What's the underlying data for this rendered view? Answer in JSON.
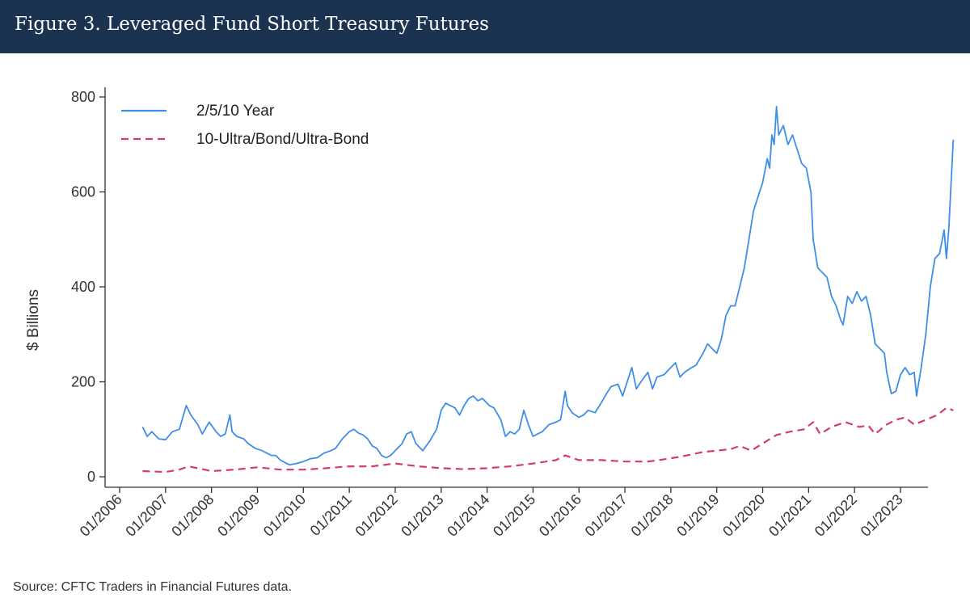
{
  "figure": {
    "title": "Figure 3. Leveraged Fund Short Treasury Futures",
    "source": "Source: CFTC Traders in Financial Futures data."
  },
  "colors": {
    "header_bg": "#1b3250",
    "series_1": "#3f8ee8",
    "series_2": "#d63a6a"
  },
  "chart_data": {
    "type": "line",
    "title": "",
    "xlabel": "",
    "ylabel": "$ Billions",
    "ylim": [
      0,
      800
    ],
    "yticks": [
      0,
      200,
      400,
      600,
      800
    ],
    "xlim": [
      2006.0,
      2023.6
    ],
    "xtick_labels": [
      "01/2006",
      "01/2007",
      "01/2008",
      "01/2009",
      "01/2010",
      "01/2011",
      "01/2012",
      "01/2013",
      "01/2014",
      "01/2015",
      "01/2016",
      "01/2017",
      "01/2018",
      "01/2019",
      "01/2020",
      "01/2021",
      "01/2022",
      "01/2023"
    ],
    "xtick_years": [
      2006,
      2007,
      2008,
      2009,
      2010,
      2011,
      2012,
      2013,
      2014,
      2015,
      2016,
      2017,
      2018,
      2019,
      2020,
      2021,
      2022,
      2023
    ],
    "grid": false,
    "legend_position": "top-left",
    "series": [
      {
        "name": "2/5/10 Year",
        "style": "solid",
        "points": [
          [
            2006.5,
            105
          ],
          [
            2006.6,
            85
          ],
          [
            2006.7,
            95
          ],
          [
            2006.85,
            80
          ],
          [
            2007.0,
            78
          ],
          [
            2007.15,
            95
          ],
          [
            2007.3,
            100
          ],
          [
            2007.45,
            150
          ],
          [
            2007.55,
            130
          ],
          [
            2007.7,
            110
          ],
          [
            2007.8,
            90
          ],
          [
            2007.95,
            115
          ],
          [
            2008.1,
            95
          ],
          [
            2008.2,
            85
          ],
          [
            2008.3,
            90
          ],
          [
            2008.4,
            130
          ],
          [
            2008.45,
            95
          ],
          [
            2008.55,
            85
          ],
          [
            2008.7,
            80
          ],
          [
            2008.8,
            70
          ],
          [
            2008.95,
            60
          ],
          [
            2009.1,
            55
          ],
          [
            2009.2,
            50
          ],
          [
            2009.3,
            45
          ],
          [
            2009.4,
            45
          ],
          [
            2009.5,
            35
          ],
          [
            2009.6,
            30
          ],
          [
            2009.7,
            25
          ],
          [
            2009.85,
            28
          ],
          [
            2010.0,
            32
          ],
          [
            2010.15,
            38
          ],
          [
            2010.3,
            40
          ],
          [
            2010.45,
            50
          ],
          [
            2010.6,
            55
          ],
          [
            2010.7,
            60
          ],
          [
            2010.85,
            80
          ],
          [
            2011.0,
            95
          ],
          [
            2011.1,
            100
          ],
          [
            2011.2,
            92
          ],
          [
            2011.3,
            88
          ],
          [
            2011.4,
            80
          ],
          [
            2011.5,
            65
          ],
          [
            2011.6,
            60
          ],
          [
            2011.7,
            45
          ],
          [
            2011.8,
            40
          ],
          [
            2011.9,
            45
          ],
          [
            2012.0,
            55
          ],
          [
            2012.15,
            70
          ],
          [
            2012.25,
            90
          ],
          [
            2012.35,
            95
          ],
          [
            2012.45,
            70
          ],
          [
            2012.6,
            55
          ],
          [
            2012.75,
            75
          ],
          [
            2012.9,
            100
          ],
          [
            2013.0,
            140
          ],
          [
            2013.1,
            155
          ],
          [
            2013.2,
            150
          ],
          [
            2013.3,
            145
          ],
          [
            2013.4,
            130
          ],
          [
            2013.5,
            150
          ],
          [
            2013.6,
            165
          ],
          [
            2013.7,
            170
          ],
          [
            2013.8,
            160
          ],
          [
            2013.9,
            165
          ],
          [
            2014.05,
            150
          ],
          [
            2014.15,
            145
          ],
          [
            2014.3,
            120
          ],
          [
            2014.4,
            85
          ],
          [
            2014.5,
            95
          ],
          [
            2014.6,
            90
          ],
          [
            2014.7,
            100
          ],
          [
            2014.8,
            140
          ],
          [
            2014.9,
            110
          ],
          [
            2015.0,
            85
          ],
          [
            2015.1,
            90
          ],
          [
            2015.2,
            95
          ],
          [
            2015.35,
            110
          ],
          [
            2015.5,
            115
          ],
          [
            2015.6,
            120
          ],
          [
            2015.7,
            180
          ],
          [
            2015.75,
            150
          ],
          [
            2015.85,
            135
          ],
          [
            2016.0,
            125
          ],
          [
            2016.1,
            130
          ],
          [
            2016.2,
            140
          ],
          [
            2016.35,
            135
          ],
          [
            2016.45,
            150
          ],
          [
            2016.6,
            175
          ],
          [
            2016.7,
            190
          ],
          [
            2016.85,
            195
          ],
          [
            2016.95,
            170
          ],
          [
            2017.05,
            200
          ],
          [
            2017.15,
            230
          ],
          [
            2017.25,
            185
          ],
          [
            2017.35,
            200
          ],
          [
            2017.5,
            220
          ],
          [
            2017.6,
            185
          ],
          [
            2017.7,
            210
          ],
          [
            2017.85,
            215
          ],
          [
            2017.95,
            225
          ],
          [
            2018.1,
            240
          ],
          [
            2018.2,
            210
          ],
          [
            2018.3,
            220
          ],
          [
            2018.45,
            230
          ],
          [
            2018.55,
            235
          ],
          [
            2018.7,
            260
          ],
          [
            2018.8,
            280
          ],
          [
            2018.9,
            270
          ],
          [
            2019.0,
            260
          ],
          [
            2019.1,
            290
          ],
          [
            2019.2,
            340
          ],
          [
            2019.3,
            360
          ],
          [
            2019.4,
            360
          ],
          [
            2019.5,
            400
          ],
          [
            2019.6,
            440
          ],
          [
            2019.7,
            500
          ],
          [
            2019.8,
            560
          ],
          [
            2019.9,
            590
          ],
          [
            2020.0,
            620
          ],
          [
            2020.1,
            670
          ],
          [
            2020.15,
            650
          ],
          [
            2020.2,
            720
          ],
          [
            2020.25,
            700
          ],
          [
            2020.3,
            780
          ],
          [
            2020.35,
            720
          ],
          [
            2020.45,
            740
          ],
          [
            2020.55,
            700
          ],
          [
            2020.65,
            720
          ],
          [
            2020.75,
            690
          ],
          [
            2020.85,
            660
          ],
          [
            2020.95,
            650
          ],
          [
            2021.05,
            600
          ],
          [
            2021.1,
            500
          ],
          [
            2021.2,
            440
          ],
          [
            2021.3,
            430
          ],
          [
            2021.4,
            420
          ],
          [
            2021.5,
            380
          ],
          [
            2021.6,
            360
          ],
          [
            2021.7,
            330
          ],
          [
            2021.75,
            320
          ],
          [
            2021.85,
            380
          ],
          [
            2021.95,
            365
          ],
          [
            2022.05,
            390
          ],
          [
            2022.15,
            370
          ],
          [
            2022.25,
            380
          ],
          [
            2022.35,
            340
          ],
          [
            2022.45,
            280
          ],
          [
            2022.55,
            270
          ],
          [
            2022.65,
            260
          ],
          [
            2022.7,
            220
          ],
          [
            2022.8,
            175
          ],
          [
            2022.9,
            180
          ],
          [
            2023.0,
            215
          ],
          [
            2023.1,
            230
          ],
          [
            2023.2,
            215
          ],
          [
            2023.3,
            220
          ],
          [
            2023.35,
            170
          ],
          [
            2023.45,
            230
          ],
          [
            2023.55,
            300
          ],
          [
            2023.65,
            400
          ],
          [
            2023.75,
            460
          ],
          [
            2023.85,
            470
          ],
          [
            2023.95,
            520
          ],
          [
            2024.0,
            460
          ],
          [
            2024.05,
            520
          ],
          [
            2024.15,
            710
          ]
        ]
      },
      {
        "name": "10-Ultra/Bond/Ultra-Bond",
        "style": "dashed",
        "points": [
          [
            2006.5,
            12
          ],
          [
            2007.0,
            10
          ],
          [
            2007.3,
            15
          ],
          [
            2007.5,
            22
          ],
          [
            2008.0,
            12
          ],
          [
            2008.5,
            15
          ],
          [
            2009.0,
            20
          ],
          [
            2009.5,
            15
          ],
          [
            2010.0,
            15
          ],
          [
            2010.5,
            18
          ],
          [
            2011.0,
            22
          ],
          [
            2011.5,
            22
          ],
          [
            2012.0,
            28
          ],
          [
            2012.5,
            22
          ],
          [
            2013.0,
            18
          ],
          [
            2013.5,
            16
          ],
          [
            2014.0,
            18
          ],
          [
            2014.5,
            22
          ],
          [
            2015.0,
            28
          ],
          [
            2015.5,
            35
          ],
          [
            2015.7,
            45
          ],
          [
            2016.0,
            35
          ],
          [
            2016.5,
            35
          ],
          [
            2017.0,
            32
          ],
          [
            2017.5,
            32
          ],
          [
            2017.8,
            36
          ],
          [
            2018.2,
            42
          ],
          [
            2018.7,
            52
          ],
          [
            2019.0,
            55
          ],
          [
            2019.3,
            58
          ],
          [
            2019.5,
            65
          ],
          [
            2019.75,
            55
          ],
          [
            2020.0,
            70
          ],
          [
            2020.3,
            88
          ],
          [
            2020.6,
            95
          ],
          [
            2020.9,
            100
          ],
          [
            2021.1,
            115
          ],
          [
            2021.25,
            90
          ],
          [
            2021.5,
            105
          ],
          [
            2021.8,
            115
          ],
          [
            2022.1,
            105
          ],
          [
            2022.3,
            108
          ],
          [
            2022.45,
            90
          ],
          [
            2022.7,
            110
          ],
          [
            2022.9,
            120
          ],
          [
            2023.1,
            125
          ],
          [
            2023.3,
            110
          ],
          [
            2023.55,
            120
          ],
          [
            2023.8,
            130
          ],
          [
            2024.0,
            145
          ],
          [
            2024.15,
            140
          ]
        ]
      }
    ]
  }
}
